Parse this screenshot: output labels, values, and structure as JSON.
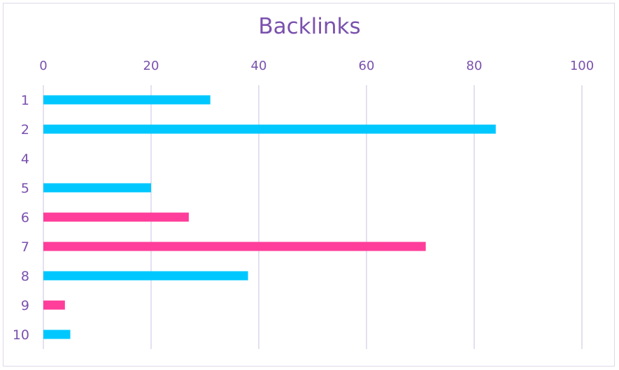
{
  "chart_data": {
    "type": "bar",
    "orientation": "horizontal",
    "title": "Backlinks",
    "xlabel": "",
    "ylabel": "",
    "xlim": [
      0,
      100
    ],
    "x_ticks": [
      "0",
      "20",
      "40",
      "60",
      "80",
      "100"
    ],
    "categories": [
      "1",
      "2",
      "4",
      "5",
      "6",
      "7",
      "8",
      "9",
      "10"
    ],
    "values": [
      31,
      84,
      0,
      20,
      27,
      71,
      38,
      4,
      5
    ],
    "bar_colors": [
      "#00c8ff",
      "#00c8ff",
      "#00c8ff",
      "#00c8ff",
      "#ff3d9a",
      "#ff3d9a",
      "#00c8ff",
      "#ff3d9a",
      "#00c8ff"
    ],
    "grid": true,
    "grid_color": "#d6d0e6",
    "text_color": "#7a51ae",
    "legend": "none"
  }
}
